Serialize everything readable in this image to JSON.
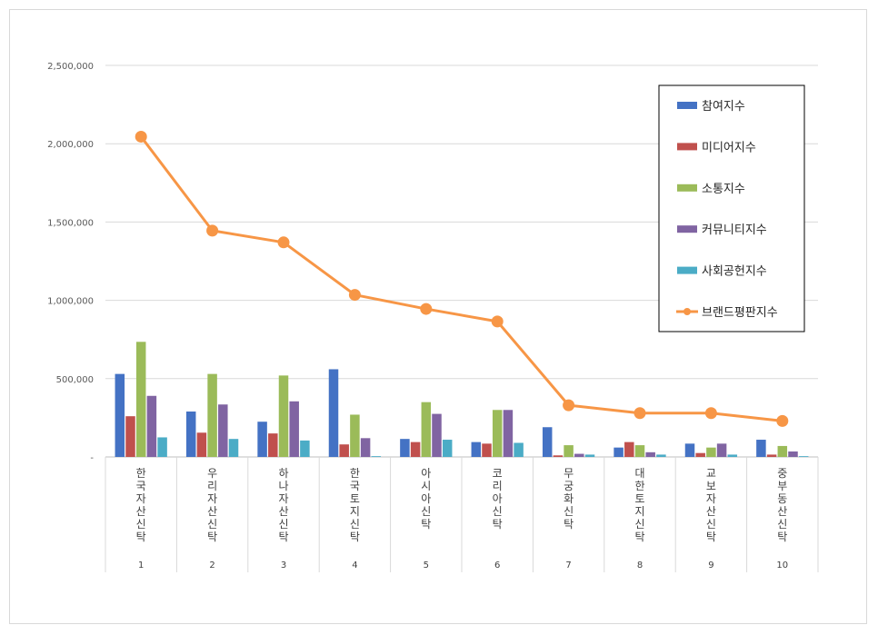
{
  "chart_data": {
    "type": "bar",
    "categories": [
      "한국자산신탁",
      "우리자산신탁",
      "하나자산신탁",
      "한국토지신탁",
      "아시아신탁",
      "코리아신탁",
      "무궁화신탁",
      "대한토지신탁",
      "교보자산신탁",
      "중부동산신탁"
    ],
    "ranks": [
      "1",
      "2",
      "3",
      "4",
      "5",
      "6",
      "7",
      "8",
      "9",
      "10"
    ],
    "ylim": [
      0,
      2500000
    ],
    "yticks": [
      0,
      500000,
      1000000,
      1500000,
      2000000,
      2500000
    ],
    "ytick_labels": [
      "-",
      "500,000",
      "1,000,000",
      "1,500,000",
      "2,000,000",
      "2,500,000"
    ],
    "grid": true,
    "legend_position": "top-right",
    "series": [
      {
        "name": "참여지수",
        "kind": "bar",
        "color": "#4472C4",
        "values": [
          530000,
          290000,
          225000,
          560000,
          115000,
          95000,
          190000,
          60000,
          85000,
          110000
        ]
      },
      {
        "name": "미디어지수",
        "kind": "bar",
        "color": "#C0504D",
        "values": [
          260000,
          155000,
          150000,
          80000,
          95000,
          85000,
          10000,
          95000,
          25000,
          15000
        ]
      },
      {
        "name": "소통지수",
        "kind": "bar",
        "color": "#9BBB59",
        "values": [
          735000,
          530000,
          520000,
          270000,
          350000,
          300000,
          75000,
          75000,
          60000,
          70000
        ]
      },
      {
        "name": "커뮤니티지수",
        "kind": "bar",
        "color": "#8064A2",
        "values": [
          390000,
          335000,
          355000,
          120000,
          275000,
          300000,
          20000,
          30000,
          85000,
          35000
        ]
      },
      {
        "name": "사회공헌지수",
        "kind": "bar",
        "color": "#4BACC6",
        "values": [
          125000,
          115000,
          105000,
          5000,
          110000,
          90000,
          15000,
          15000,
          15000,
          5000
        ]
      },
      {
        "name": "브랜드평판지수",
        "kind": "line",
        "color": "#F79646",
        "values": [
          2045000,
          1445000,
          1370000,
          1035000,
          945000,
          865000,
          330000,
          280000,
          280000,
          230000
        ]
      }
    ]
  }
}
